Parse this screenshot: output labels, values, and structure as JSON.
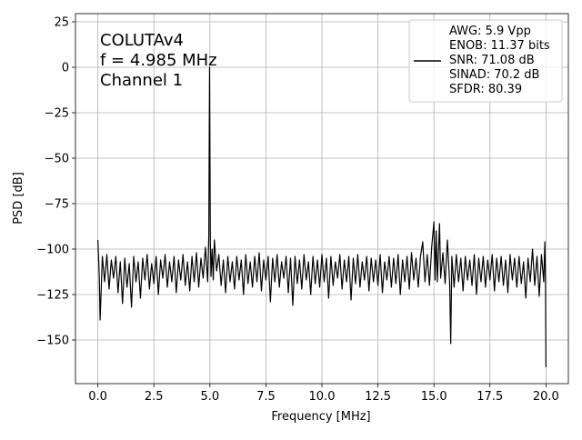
{
  "chart_data": {
    "type": "line",
    "xlabel": "Frequency [MHz]",
    "ylabel": "PSD [dB]",
    "annotation": [
      "COLUTAv4",
      "f = 4.985 MHz",
      "Channel 1"
    ],
    "xlim": [
      -1.0,
      21.0
    ],
    "ylim": [
      -174,
      29.5
    ],
    "xticks": [
      {
        "value": 0,
        "label": "0.0"
      },
      2.5,
      {
        "value": 5,
        "label": "5.0"
      },
      7.5,
      {
        "value": 10,
        "label": "10.0"
      },
      12.5,
      {
        "value": 15,
        "label": "15.0"
      },
      17.5,
      {
        "value": 20,
        "label": "20.0"
      }
    ],
    "yticks": [
      25,
      0,
      {
        "value": -25,
        "label": "−25"
      },
      {
        "value": -50,
        "label": "−50"
      },
      {
        "value": -75,
        "label": "−75"
      },
      {
        "value": -100,
        "label": "−100"
      },
      {
        "value": -125,
        "label": "−125"
      },
      {
        "value": -150,
        "label": "−150"
      }
    ],
    "grid": true,
    "legend": "upper right",
    "x": [
      0,
      0.06,
      0.1,
      0.2,
      0.3,
      0.4,
      0.5,
      0.6,
      0.7,
      0.8,
      0.9,
      1.0,
      1.1,
      1.2,
      1.3,
      1.4,
      1.5,
      1.6,
      1.7,
      1.8,
      1.9,
      2.0,
      2.1,
      2.2,
      2.3,
      2.4,
      2.5,
      2.6,
      2.7,
      2.8,
      2.9,
      3.0,
      3.1,
      3.2,
      3.3,
      3.4,
      3.5,
      3.6,
      3.7,
      3.8,
      3.9,
      4.0,
      4.1,
      4.2,
      4.3,
      4.4,
      4.5,
      4.6,
      4.7,
      4.8,
      4.9,
      4.95,
      4.985,
      5.02,
      5.05,
      5.1,
      5.15,
      5.2,
      5.3,
      5.4,
      5.5,
      5.6,
      5.7,
      5.8,
      5.9,
      6.0,
      6.1,
      6.2,
      6.3,
      6.4,
      6.5,
      6.6,
      6.7,
      6.8,
      6.9,
      7.0,
      7.1,
      7.2,
      7.3,
      7.4,
      7.5,
      7.6,
      7.7,
      7.8,
      7.9,
      8.0,
      8.1,
      8.2,
      8.3,
      8.4,
      8.5,
      8.6,
      8.7,
      8.8,
      8.9,
      9.0,
      9.1,
      9.2,
      9.3,
      9.4,
      9.5,
      9.6,
      9.7,
      9.8,
      9.9,
      10.0,
      10.1,
      10.2,
      10.3,
      10.4,
      10.5,
      10.6,
      10.7,
      10.8,
      10.9,
      11.0,
      11.1,
      11.2,
      11.3,
      11.4,
      11.5,
      11.6,
      11.7,
      11.8,
      11.9,
      12.0,
      12.1,
      12.2,
      12.3,
      12.4,
      12.5,
      12.6,
      12.7,
      12.8,
      12.9,
      13.0,
      13.1,
      13.2,
      13.3,
      13.4,
      13.5,
      13.6,
      13.7,
      13.8,
      13.9,
      14.0,
      14.1,
      14.2,
      14.3,
      14.4,
      14.5,
      14.6,
      14.7,
      14.8,
      14.9,
      15.0,
      15.05,
      15.1,
      15.15,
      15.25,
      15.3,
      15.4,
      15.5,
      15.6,
      15.7,
      15.75,
      15.8,
      15.9,
      16.0,
      16.1,
      16.2,
      16.3,
      16.4,
      16.5,
      16.6,
      16.7,
      16.8,
      16.9,
      17.0,
      17.1,
      17.2,
      17.3,
      17.4,
      17.5,
      17.6,
      17.7,
      17.8,
      17.9,
      18.0,
      18.1,
      18.2,
      18.3,
      18.4,
      18.5,
      18.6,
      18.7,
      18.8,
      18.9,
      19.0,
      19.1,
      19.2,
      19.3,
      19.4,
      19.5,
      19.6,
      19.7,
      19.8,
      19.9,
      19.95,
      19.98,
      20.0
    ],
    "series": [
      {
        "name": [
          "AWG: 5.9 Vpp",
          "ENOB: 11.37 bits",
          "SNR: 71.08 dB",
          "SINAD: 70.2 dB",
          "SFDR: 80.39"
        ],
        "color": "#000000",
        "values": [
          -95,
          -114,
          -139,
          -104,
          -118,
          -103,
          -122,
          -106,
          -116,
          -104,
          -124,
          -107,
          -130,
          -105,
          -121,
          -108,
          -132,
          -104,
          -118,
          -107,
          -127,
          -105,
          -117,
          -103,
          -122,
          -108,
          -119,
          -104,
          -125,
          -106,
          -116,
          -103,
          -121,
          -107,
          -118,
          -104,
          -124,
          -106,
          -117,
          -103,
          -120,
          -107,
          -123,
          -104,
          -118,
          -102,
          -121,
          -105,
          -116,
          -99,
          -118,
          -93,
          0,
          -96,
          -115,
          -100,
          -117,
          -95,
          -112,
          -103,
          -120,
          -106,
          -124,
          -104,
          -118,
          -107,
          -122,
          -104,
          -117,
          -106,
          -125,
          -103,
          -119,
          -107,
          -121,
          -104,
          -118,
          -102,
          -123,
          -106,
          -117,
          -104,
          -129,
          -105,
          -118,
          -103,
          -121,
          -107,
          -116,
          -104,
          -124,
          -105,
          -131,
          -104,
          -119,
          -106,
          -122,
          -103,
          -117,
          -107,
          -125,
          -104,
          -119,
          -106,
          -121,
          -103,
          -118,
          -105,
          -127,
          -104,
          -120,
          -107,
          -116,
          -103,
          -122,
          -106,
          -118,
          -104,
          -128,
          -105,
          -119,
          -103,
          -121,
          -107,
          -117,
          -104,
          -123,
          -105,
          -118,
          -106,
          -120,
          -103,
          -124,
          -107,
          -117,
          -104,
          -121,
          -105,
          -119,
          -103,
          -125,
          -106,
          -118,
          -104,
          -122,
          -102,
          -117,
          -105,
          -121,
          -104,
          -96,
          -118,
          -103,
          -120,
          -99,
          -85,
          -117,
          -90,
          -118,
          -86,
          -116,
          -102,
          -119,
          -95,
          -118,
          -152,
          -104,
          -121,
          -103,
          -118,
          -105,
          -123,
          -104,
          -117,
          -106,
          -120,
          -103,
          -125,
          -105,
          -118,
          -104,
          -121,
          -106,
          -117,
          -103,
          -123,
          -105,
          -118,
          -104,
          -120,
          -106,
          -124,
          -103,
          -117,
          -105,
          -121,
          -104,
          -119,
          -107,
          -127,
          -105,
          -118,
          -100,
          -120,
          -104,
          -126,
          -103,
          -118,
          -96,
          -118,
          -165
        ]
      }
    ]
  }
}
